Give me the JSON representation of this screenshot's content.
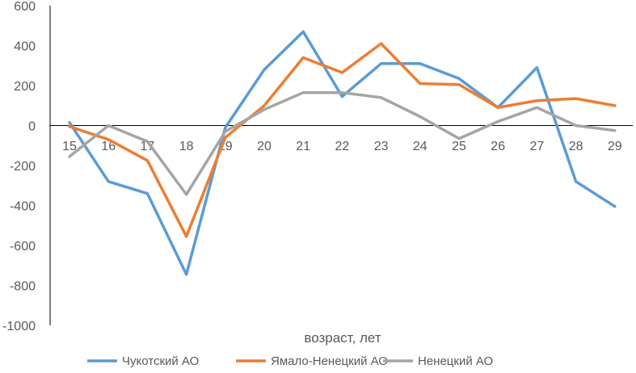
{
  "chart_data": {
    "type": "line",
    "title": "",
    "xlabel": "возраст, лет",
    "ylabel": "",
    "categories": [
      "15",
      "16",
      "17",
      "18",
      "19",
      "20",
      "21",
      "22",
      "23",
      "24",
      "25",
      "26",
      "27",
      "28",
      "29"
    ],
    "ylim": [
      -1000,
      600
    ],
    "yticks": [
      600,
      400,
      200,
      0,
      -200,
      -400,
      -600,
      -800,
      -1000
    ],
    "grid": false,
    "legend_position": "bottom",
    "series": [
      {
        "name": "Чукотский АО",
        "color": "#5B9BD5",
        "values": [
          15,
          -280,
          -340,
          -745,
          -10,
          280,
          470,
          145,
          310,
          310,
          235,
          90,
          290,
          -280,
          -405
        ]
      },
      {
        "name": "Ямало-Ненецкий АО",
        "color": "#ED7D31",
        "values": [
          -5,
          -70,
          -175,
          -555,
          -60,
          100,
          340,
          265,
          410,
          210,
          205,
          90,
          125,
          135,
          100
        ]
      },
      {
        "name": "Ненецкий АО",
        "color": "#A5A5A5",
        "values": [
          -155,
          0,
          -80,
          -345,
          -30,
          80,
          165,
          165,
          140,
          45,
          -65,
          20,
          90,
          0,
          -25
        ]
      }
    ]
  }
}
